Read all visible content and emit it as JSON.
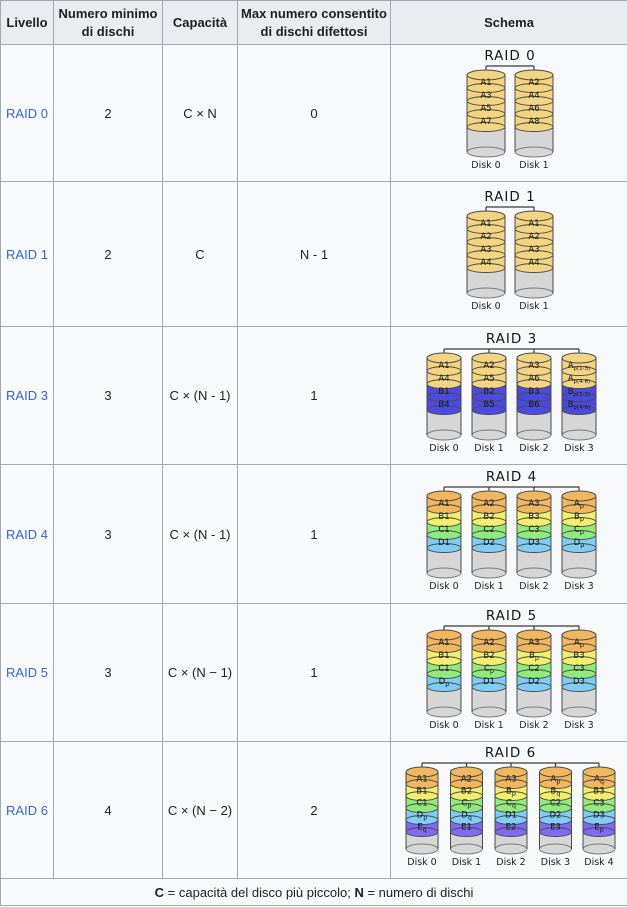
{
  "header": {
    "cols": [
      "Livello",
      "Numero minimo di dischi",
      "Capacità",
      "Max numero consentito di dischi difettosi",
      "Schema"
    ]
  },
  "palette": {
    "gold": "#f2d483",
    "blue": "#4a4ade",
    "A": "#f0b75e",
    "B": "#f2ee6e",
    "C": "#92e97e",
    "D": "#7fcdf4",
    "E": "#7e6bf2",
    "body": "#d6d6d6",
    "outline": "#4a4a4a",
    "link": "#3366cc"
  },
  "rows": [
    {
      "level": "RAID 0",
      "min": "2",
      "cap": "C × N",
      "max": "0",
      "schema": {
        "title": "RAID 0",
        "disks": [
          {
            "name": "Disk 0",
            "blocks": [
              {
                "t": "A1",
                "c": "gold"
              },
              {
                "t": "A3",
                "c": "gold"
              },
              {
                "t": "A5",
                "c": "gold"
              },
              {
                "t": "A7",
                "c": "gold"
              }
            ]
          },
          {
            "name": "Disk 1",
            "blocks": [
              {
                "t": "A2",
                "c": "gold"
              },
              {
                "t": "A4",
                "c": "gold"
              },
              {
                "t": "A6",
                "c": "gold"
              },
              {
                "t": "A8",
                "c": "gold"
              }
            ]
          }
        ]
      }
    },
    {
      "level": "RAID 1",
      "min": "2",
      "cap": "C",
      "max": "N - 1",
      "schema": {
        "title": "RAID 1",
        "disks": [
          {
            "name": "Disk 0",
            "blocks": [
              {
                "t": "A1",
                "c": "gold"
              },
              {
                "t": "A2",
                "c": "gold"
              },
              {
                "t": "A3",
                "c": "gold"
              },
              {
                "t": "A4",
                "c": "gold"
              }
            ]
          },
          {
            "name": "Disk 1",
            "blocks": [
              {
                "t": "A1",
                "c": "gold"
              },
              {
                "t": "A2",
                "c": "gold"
              },
              {
                "t": "A3",
                "c": "gold"
              },
              {
                "t": "A4",
                "c": "gold"
              }
            ]
          }
        ]
      }
    },
    {
      "level": "RAID 3",
      "min": "3",
      "cap": "C × (N - 1)",
      "max": "1",
      "schema": {
        "title": "RAID 3",
        "disks": [
          {
            "name": "Disk 0",
            "blocks": [
              {
                "t": "A1",
                "c": "gold"
              },
              {
                "t": "A4",
                "c": "gold"
              },
              {
                "t": "B1",
                "c": "blue"
              },
              {
                "t": "B4",
                "c": "blue"
              }
            ]
          },
          {
            "name": "Disk 1",
            "blocks": [
              {
                "t": "A2",
                "c": "gold"
              },
              {
                "t": "A5",
                "c": "gold"
              },
              {
                "t": "B2",
                "c": "blue"
              },
              {
                "t": "B5",
                "c": "blue"
              }
            ]
          },
          {
            "name": "Disk 2",
            "blocks": [
              {
                "t": "A3",
                "c": "gold"
              },
              {
                "t": "A6",
                "c": "gold"
              },
              {
                "t": "B3",
                "c": "blue"
              },
              {
                "t": "B6",
                "c": "blue"
              }
            ]
          },
          {
            "name": "Disk 3",
            "blocks": [
              {
                "t": "A",
                "s": "p(1-3)",
                "c": "gold"
              },
              {
                "t": "A",
                "s": "p(4-6)",
                "c": "gold"
              },
              {
                "t": "B",
                "s": "p(1-3)",
                "c": "blue"
              },
              {
                "t": "B",
                "s": "p(4-6)",
                "c": "blue"
              }
            ]
          }
        ]
      }
    },
    {
      "level": "RAID 4",
      "min": "3",
      "cap": "C × (N - 1)",
      "max": "1",
      "schema": {
        "title": "RAID 4",
        "disks": [
          {
            "name": "Disk 0",
            "blocks": [
              {
                "t": "A1",
                "c": "A"
              },
              {
                "t": "B1",
                "c": "B"
              },
              {
                "t": "C1",
                "c": "C"
              },
              {
                "t": "D1",
                "c": "D"
              }
            ]
          },
          {
            "name": "Disk 1",
            "blocks": [
              {
                "t": "A2",
                "c": "A"
              },
              {
                "t": "B2",
                "c": "B"
              },
              {
                "t": "C2",
                "c": "C"
              },
              {
                "t": "D2",
                "c": "D"
              }
            ]
          },
          {
            "name": "Disk 2",
            "blocks": [
              {
                "t": "A3",
                "c": "A"
              },
              {
                "t": "B3",
                "c": "B"
              },
              {
                "t": "C3",
                "c": "C"
              },
              {
                "t": "D3",
                "c": "D"
              }
            ]
          },
          {
            "name": "Disk 3",
            "blocks": [
              {
                "t": "A",
                "s": "p",
                "c": "A"
              },
              {
                "t": "B",
                "s": "p",
                "c": "B"
              },
              {
                "t": "C",
                "s": "p",
                "c": "C"
              },
              {
                "t": "D",
                "s": "p",
                "c": "D"
              }
            ]
          }
        ]
      }
    },
    {
      "level": "RAID 5",
      "min": "3",
      "cap": "C × (N − 1)",
      "max": "1",
      "schema": {
        "title": "RAID 5",
        "disks": [
          {
            "name": "Disk 0",
            "blocks": [
              {
                "t": "A1",
                "c": "A"
              },
              {
                "t": "B1",
                "c": "B"
              },
              {
                "t": "C1",
                "c": "C"
              },
              {
                "t": "D",
                "s": "p",
                "c": "D"
              }
            ]
          },
          {
            "name": "Disk 1",
            "blocks": [
              {
                "t": "A2",
                "c": "A"
              },
              {
                "t": "B2",
                "c": "B"
              },
              {
                "t": "C",
                "s": "p",
                "c": "C"
              },
              {
                "t": "D1",
                "c": "D"
              }
            ]
          },
          {
            "name": "Disk 2",
            "blocks": [
              {
                "t": "A3",
                "c": "A"
              },
              {
                "t": "B",
                "s": "p",
                "c": "B"
              },
              {
                "t": "C2",
                "c": "C"
              },
              {
                "t": "D2",
                "c": "D"
              }
            ]
          },
          {
            "name": "Disk 3",
            "blocks": [
              {
                "t": "A",
                "s": "p",
                "c": "A"
              },
              {
                "t": "B3",
                "c": "B"
              },
              {
                "t": "C3",
                "c": "C"
              },
              {
                "t": "D3",
                "c": "D"
              }
            ]
          }
        ]
      }
    },
    {
      "level": "RAID 6",
      "min": "4",
      "cap": "C × (N − 2)",
      "max": "2",
      "schema": {
        "title": "RAID 6",
        "disks": [
          {
            "name": "Disk 0",
            "blocks": [
              {
                "t": "A1",
                "c": "A"
              },
              {
                "t": "B1",
                "c": "B"
              },
              {
                "t": "C1",
                "c": "C"
              },
              {
                "t": "D",
                "s": "p",
                "c": "D"
              },
              {
                "t": "E",
                "s": "q",
                "c": "E"
              }
            ]
          },
          {
            "name": "Disk 1",
            "blocks": [
              {
                "t": "A2",
                "c": "A"
              },
              {
                "t": "B2",
                "c": "B"
              },
              {
                "t": "C",
                "s": "p",
                "c": "C"
              },
              {
                "t": "D",
                "s": "q",
                "c": "D"
              },
              {
                "t": "E1",
                "c": "E"
              }
            ]
          },
          {
            "name": "Disk 2",
            "blocks": [
              {
                "t": "A3",
                "c": "A"
              },
              {
                "t": "B",
                "s": "p",
                "c": "B"
              },
              {
                "t": "C",
                "s": "q",
                "c": "C"
              },
              {
                "t": "D1",
                "c": "D"
              },
              {
                "t": "E2",
                "c": "E"
              }
            ]
          },
          {
            "name": "Disk 3",
            "blocks": [
              {
                "t": "A",
                "s": "p",
                "c": "A"
              },
              {
                "t": "B",
                "s": "q",
                "c": "B"
              },
              {
                "t": "C2",
                "c": "C"
              },
              {
                "t": "D2",
                "c": "D"
              },
              {
                "t": "E3",
                "c": "E"
              }
            ]
          },
          {
            "name": "Disk 4",
            "blocks": [
              {
                "t": "A",
                "s": "q",
                "c": "A"
              },
              {
                "t": "B3",
                "c": "B"
              },
              {
                "t": "C3",
                "c": "C"
              },
              {
                "t": "D3",
                "c": "D"
              },
              {
                "t": "E",
                "s": "p",
                "c": "E"
              }
            ]
          }
        ]
      }
    }
  ],
  "footnote": {
    "parts": [
      {
        "t": "C",
        "b": true
      },
      {
        "t": " = capacità del disco più piccolo; ",
        "b": false
      },
      {
        "t": "N",
        "b": true
      },
      {
        "t": " = numero di dischi",
        "b": false
      }
    ]
  }
}
